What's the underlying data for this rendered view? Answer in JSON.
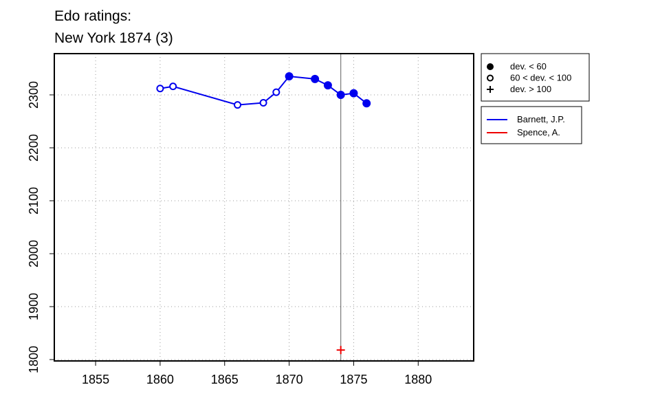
{
  "chart_data": {
    "type": "line",
    "title": "Edo ratings:",
    "subtitle": "New York 1874 (3)",
    "xlim": [
      1851.8,
      1884.3
    ],
    "xticks": [
      1855,
      1860,
      1865,
      1870,
      1875,
      1880
    ],
    "ylim": [
      1797.4,
      2377.9
    ],
    "yticks": [
      1800,
      1900,
      2000,
      2100,
      2200,
      2300
    ],
    "grid": true,
    "vline": 1874,
    "symbol_legend": [
      "dev. < 60",
      "60 < dev. < 100",
      "dev. > 100"
    ],
    "series": [
      {
        "name": "Barnett, J.P.",
        "color": "#0000ee",
        "x": [
          1860,
          1861,
          1866,
          1868,
          1869,
          1870,
          1872,
          1873,
          1874,
          1875,
          1876
        ],
        "values": [
          2312,
          2316,
          2281,
          2285,
          2305,
          2335,
          2330,
          2318,
          2300,
          2303,
          2284
        ],
        "markers": [
          "open",
          "open",
          "open",
          "open",
          "open",
          "filled",
          "filled",
          "filled",
          "filled",
          "filled",
          "filled"
        ]
      },
      {
        "name": "Spence, A.",
        "color": "#ee0000",
        "x": [
          1874
        ],
        "values": [
          1818
        ],
        "markers": [
          "plus"
        ]
      }
    ]
  }
}
